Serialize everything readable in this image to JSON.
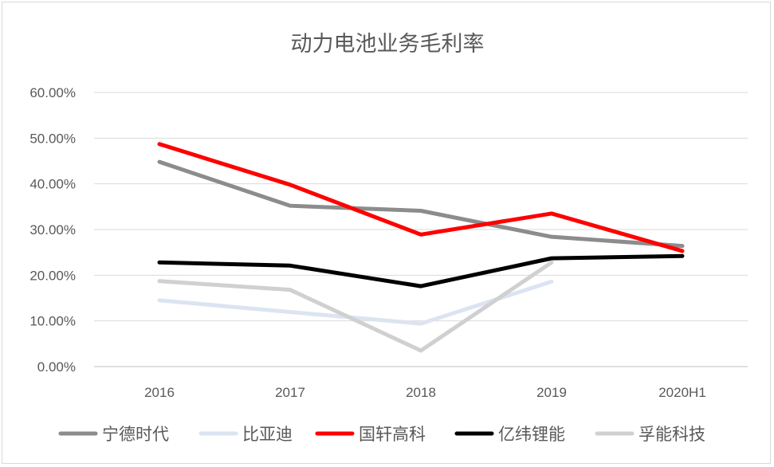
{
  "chart_data": {
    "type": "line",
    "title": "动力电池业务毛利率",
    "xlabel": "",
    "ylabel": "",
    "categories": [
      "2016",
      "2017",
      "2018",
      "2019",
      "2020H1"
    ],
    "ylim": [
      0,
      60
    ],
    "yticks": [
      "0.00%",
      "10.00%",
      "20.00%",
      "30.00%",
      "40.00%",
      "50.00%",
      "60.00%"
    ],
    "grid": true,
    "legend_position": "bottom",
    "series": [
      {
        "name": "宁德时代",
        "color": "#8c8c8c",
        "values": [
          44.8,
          35.2,
          34.1,
          28.4,
          26.4
        ]
      },
      {
        "name": "比亚迪",
        "color": "#dce4f2",
        "values": [
          14.5,
          null,
          9.4,
          18.6,
          null
        ]
      },
      {
        "name": "国轩高科",
        "color": "#ff0000",
        "values": [
          48.7,
          39.8,
          28.9,
          33.5,
          25.3
        ]
      },
      {
        "name": "亿纬锂能",
        "color": "#000000",
        "values": [
          22.8,
          22.1,
          17.6,
          23.7,
          24.2
        ]
      },
      {
        "name": "孚能科技",
        "color": "#d0d0d0",
        "values": [
          18.7,
          16.8,
          3.5,
          22.8,
          null
        ]
      }
    ]
  }
}
